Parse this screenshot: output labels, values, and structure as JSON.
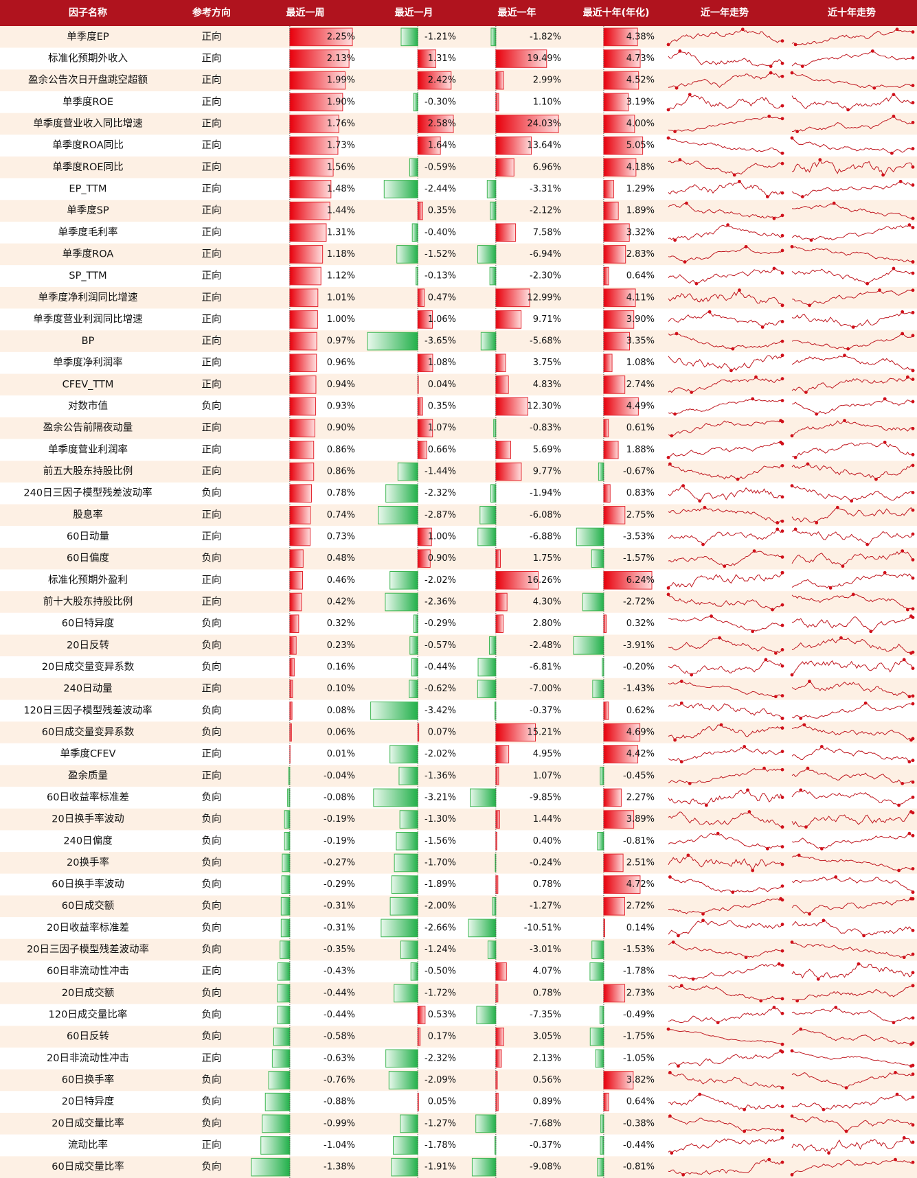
{
  "table": {
    "headers": [
      "因子名称",
      "参考方向",
      "最近一周",
      "最近一月",
      "最近一年",
      "最近十年(年化)",
      "近一年走势",
      "近十年走势"
    ],
    "rows": [
      [
        "单季度EP",
        "正向",
        {
          "value": 2.25,
          "label": "2.25%"
        },
        {
          "value": -1.21,
          "label": "-1.21%"
        },
        {
          "value": -1.82,
          "label": "-1.82%"
        },
        {
          "value": 4.38,
          "label": "4.38%"
        }
      ],
      [
        "标准化预期外收入",
        "正向",
        {
          "value": 2.13,
          "label": "2.13%"
        },
        {
          "value": 1.31,
          "label": "1.31%"
        },
        {
          "value": 19.49,
          "label": "19.49%"
        },
        {
          "value": 4.73,
          "label": "4.73%"
        }
      ],
      [
        "盈余公告次日开盘跳空超额",
        "正向",
        {
          "value": 1.99,
          "label": "1.99%"
        },
        {
          "value": 2.42,
          "label": "2.42%"
        },
        {
          "value": 2.99,
          "label": "2.99%"
        },
        {
          "value": 4.52,
          "label": "4.52%"
        }
      ],
      [
        "单季度ROE",
        "正向",
        {
          "value": 1.9,
          "label": "1.90%"
        },
        {
          "value": -0.3,
          "label": "-0.30%"
        },
        {
          "value": 1.1,
          "label": "1.10%"
        },
        {
          "value": 3.19,
          "label": "3.19%"
        }
      ],
      [
        "单季度营业收入同比增速",
        "正向",
        {
          "value": 1.76,
          "label": "1.76%"
        },
        {
          "value": 2.58,
          "label": "2.58%"
        },
        {
          "value": 24.03,
          "label": "24.03%"
        },
        {
          "value": 4.0,
          "label": "4.00%"
        }
      ],
      [
        "单季度ROA同比",
        "正向",
        {
          "value": 1.73,
          "label": "1.73%"
        },
        {
          "value": 1.64,
          "label": "1.64%"
        },
        {
          "value": 13.64,
          "label": "13.64%"
        },
        {
          "value": 5.05,
          "label": "5.05%"
        }
      ],
      [
        "单季度ROE同比",
        "正向",
        {
          "value": 1.56,
          "label": "1.56%"
        },
        {
          "value": -0.59,
          "label": "-0.59%"
        },
        {
          "value": 6.96,
          "label": "6.96%"
        },
        {
          "value": 4.18,
          "label": "4.18%"
        }
      ],
      [
        "EP_TTM",
        "正向",
        {
          "value": 1.48,
          "label": "1.48%"
        },
        {
          "value": -2.44,
          "label": "-2.44%"
        },
        {
          "value": -3.31,
          "label": "-3.31%"
        },
        {
          "value": 1.29,
          "label": "1.29%"
        }
      ],
      [
        "单季度SP",
        "正向",
        {
          "value": 1.44,
          "label": "1.44%"
        },
        {
          "value": 0.35,
          "label": "0.35%"
        },
        {
          "value": -2.12,
          "label": "-2.12%"
        },
        {
          "value": 1.89,
          "label": "1.89%"
        }
      ],
      [
        "单季度毛利率",
        "正向",
        {
          "value": 1.31,
          "label": "1.31%"
        },
        {
          "value": -0.4,
          "label": "-0.40%"
        },
        {
          "value": 7.58,
          "label": "7.58%"
        },
        {
          "value": 3.32,
          "label": "3.32%"
        }
      ],
      [
        "单季度ROA",
        "正向",
        {
          "value": 1.18,
          "label": "1.18%"
        },
        {
          "value": -1.52,
          "label": "-1.52%"
        },
        {
          "value": -6.94,
          "label": "-6.94%"
        },
        {
          "value": 2.83,
          "label": "2.83%"
        }
      ],
      [
        "SP_TTM",
        "正向",
        {
          "value": 1.12,
          "label": "1.12%"
        },
        {
          "value": -0.13,
          "label": "-0.13%"
        },
        {
          "value": -2.3,
          "label": "-2.30%"
        },
        {
          "value": 0.64,
          "label": "0.64%"
        }
      ],
      [
        "单季度净利润同比增速",
        "正向",
        {
          "value": 1.01,
          "label": "1.01%"
        },
        {
          "value": 0.47,
          "label": "0.47%"
        },
        {
          "value": 12.99,
          "label": "12.99%"
        },
        {
          "value": 4.11,
          "label": "4.11%"
        }
      ],
      [
        "单季度营业利润同比增速",
        "正向",
        {
          "value": 1.0,
          "label": "1.00%"
        },
        {
          "value": 1.06,
          "label": "1.06%"
        },
        {
          "value": 9.71,
          "label": "9.71%"
        },
        {
          "value": 3.9,
          "label": "3.90%"
        }
      ],
      [
        "BP",
        "正向",
        {
          "value": 0.97,
          "label": "0.97%"
        },
        {
          "value": -3.65,
          "label": "-3.65%"
        },
        {
          "value": -5.68,
          "label": "-5.68%"
        },
        {
          "value": 3.35,
          "label": "3.35%"
        }
      ],
      [
        "单季度净利润率",
        "正向",
        {
          "value": 0.96,
          "label": "0.96%"
        },
        {
          "value": 1.08,
          "label": "1.08%"
        },
        {
          "value": 3.75,
          "label": "3.75%"
        },
        {
          "value": 1.08,
          "label": "1.08%"
        }
      ],
      [
        "CFEV_TTM",
        "正向",
        {
          "value": 0.94,
          "label": "0.94%"
        },
        {
          "value": 0.04,
          "label": "0.04%"
        },
        {
          "value": 4.83,
          "label": "4.83%"
        },
        {
          "value": 2.74,
          "label": "2.74%"
        }
      ],
      [
        "对数市值",
        "负向",
        {
          "value": 0.93,
          "label": "0.93%"
        },
        {
          "value": 0.35,
          "label": "0.35%"
        },
        {
          "value": 12.3,
          "label": "12.30%"
        },
        {
          "value": 4.49,
          "label": "4.49%"
        }
      ],
      [
        "盈余公告前隔夜动量",
        "正向",
        {
          "value": 0.9,
          "label": "0.90%"
        },
        {
          "value": 1.07,
          "label": "1.07%"
        },
        {
          "value": -0.83,
          "label": "-0.83%"
        },
        {
          "value": 0.61,
          "label": "0.61%"
        }
      ],
      [
        "单季度营业利润率",
        "正向",
        {
          "value": 0.86,
          "label": "0.86%"
        },
        {
          "value": 0.66,
          "label": "0.66%"
        },
        {
          "value": 5.69,
          "label": "5.69%"
        },
        {
          "value": 1.88,
          "label": "1.88%"
        }
      ],
      [
        "前五大股东持股比例",
        "正向",
        {
          "value": 0.86,
          "label": "0.86%"
        },
        {
          "value": -1.44,
          "label": "-1.44%"
        },
        {
          "value": 9.77,
          "label": "9.77%"
        },
        {
          "value": -0.67,
          "label": "-0.67%"
        }
      ],
      [
        "240日三因子模型残差波动率",
        "负向",
        {
          "value": 0.78,
          "label": "0.78%"
        },
        {
          "value": -2.32,
          "label": "-2.32%"
        },
        {
          "value": -1.94,
          "label": "-1.94%"
        },
        {
          "value": 0.83,
          "label": "0.83%"
        }
      ],
      [
        "股息率",
        "正向",
        {
          "value": 0.74,
          "label": "0.74%"
        },
        {
          "value": -2.87,
          "label": "-2.87%"
        },
        {
          "value": -6.08,
          "label": "-6.08%"
        },
        {
          "value": 2.75,
          "label": "2.75%"
        }
      ],
      [
        "60日动量",
        "正向",
        {
          "value": 0.73,
          "label": "0.73%"
        },
        {
          "value": 1.0,
          "label": "1.00%"
        },
        {
          "value": -6.88,
          "label": "-6.88%"
        },
        {
          "value": -3.53,
          "label": "-3.53%"
        }
      ],
      [
        "60日偏度",
        "负向",
        {
          "value": 0.48,
          "label": "0.48%"
        },
        {
          "value": 0.9,
          "label": "0.90%"
        },
        {
          "value": 1.75,
          "label": "1.75%"
        },
        {
          "value": -1.57,
          "label": "-1.57%"
        }
      ],
      [
        "标准化预期外盈利",
        "正向",
        {
          "value": 0.46,
          "label": "0.46%"
        },
        {
          "value": -2.02,
          "label": "-2.02%"
        },
        {
          "value": 16.26,
          "label": "16.26%"
        },
        {
          "value": 6.24,
          "label": "6.24%"
        }
      ],
      [
        "前十大股东持股比例",
        "正向",
        {
          "value": 0.42,
          "label": "0.42%"
        },
        {
          "value": -2.36,
          "label": "-2.36%"
        },
        {
          "value": 4.3,
          "label": "4.30%"
        },
        {
          "value": -2.72,
          "label": "-2.72%"
        }
      ],
      [
        "60日特异度",
        "负向",
        {
          "value": 0.32,
          "label": "0.32%"
        },
        {
          "value": -0.29,
          "label": "-0.29%"
        },
        {
          "value": 2.8,
          "label": "2.80%"
        },
        {
          "value": 0.32,
          "label": "0.32%"
        }
      ],
      [
        "20日反转",
        "负向",
        {
          "value": 0.23,
          "label": "0.23%"
        },
        {
          "value": -0.57,
          "label": "-0.57%"
        },
        {
          "value": -2.48,
          "label": "-2.48%"
        },
        {
          "value": -3.91,
          "label": "-3.91%"
        }
      ],
      [
        "20日成交量变异系数",
        "负向",
        {
          "value": 0.16,
          "label": "0.16%"
        },
        {
          "value": -0.44,
          "label": "-0.44%"
        },
        {
          "value": -6.81,
          "label": "-6.81%"
        },
        {
          "value": -0.2,
          "label": "-0.20%"
        }
      ],
      [
        "240日动量",
        "正向",
        {
          "value": 0.1,
          "label": "0.10%"
        },
        {
          "value": -0.62,
          "label": "-0.62%"
        },
        {
          "value": -7.0,
          "label": "-7.00%"
        },
        {
          "value": -1.43,
          "label": "-1.43%"
        }
      ],
      [
        "120日三因子模型残差波动率",
        "负向",
        {
          "value": 0.08,
          "label": "0.08%"
        },
        {
          "value": -3.42,
          "label": "-3.42%"
        },
        {
          "value": -0.37,
          "label": "-0.37%"
        },
        {
          "value": 0.62,
          "label": "0.62%"
        }
      ],
      [
        "60日成交量变异系数",
        "负向",
        {
          "value": 0.06,
          "label": "0.06%"
        },
        {
          "value": 0.07,
          "label": "0.07%"
        },
        {
          "value": 15.21,
          "label": "15.21%"
        },
        {
          "value": 4.69,
          "label": "4.69%"
        }
      ],
      [
        "单季度CFEV",
        "正向",
        {
          "value": 0.01,
          "label": "0.01%"
        },
        {
          "value": -2.02,
          "label": "-2.02%"
        },
        {
          "value": 4.95,
          "label": "4.95%"
        },
        {
          "value": 4.42,
          "label": "4.42%"
        }
      ],
      [
        "盈余质量",
        "正向",
        {
          "value": -0.04,
          "label": "-0.04%"
        },
        {
          "value": -1.36,
          "label": "-1.36%"
        },
        {
          "value": 1.07,
          "label": "1.07%"
        },
        {
          "value": -0.45,
          "label": "-0.45%"
        }
      ],
      [
        "60日收益率标准差",
        "负向",
        {
          "value": -0.08,
          "label": "-0.08%"
        },
        {
          "value": -3.21,
          "label": "-3.21%"
        },
        {
          "value": -9.85,
          "label": "-9.85%"
        },
        {
          "value": 2.27,
          "label": "2.27%"
        }
      ],
      [
        "20日换手率波动",
        "负向",
        {
          "value": -0.19,
          "label": "-0.19%"
        },
        {
          "value": -1.3,
          "label": "-1.30%"
        },
        {
          "value": 1.44,
          "label": "1.44%"
        },
        {
          "value": 3.89,
          "label": "3.89%"
        }
      ],
      [
        "240日偏度",
        "负向",
        {
          "value": -0.19,
          "label": "-0.19%"
        },
        {
          "value": -1.56,
          "label": "-1.56%"
        },
        {
          "value": 0.4,
          "label": "0.40%"
        },
        {
          "value": -0.81,
          "label": "-0.81%"
        }
      ],
      [
        "20换手率",
        "负向",
        {
          "value": -0.27,
          "label": "-0.27%"
        },
        {
          "value": -1.7,
          "label": "-1.70%"
        },
        {
          "value": -0.24,
          "label": "-0.24%"
        },
        {
          "value": 2.51,
          "label": "2.51%"
        }
      ],
      [
        "60日换手率波动",
        "负向",
        {
          "value": -0.29,
          "label": "-0.29%"
        },
        {
          "value": -1.89,
          "label": "-1.89%"
        },
        {
          "value": 0.78,
          "label": "0.78%"
        },
        {
          "value": 4.72,
          "label": "4.72%"
        }
      ],
      [
        "60日成交额",
        "负向",
        {
          "value": -0.31,
          "label": "-0.31%"
        },
        {
          "value": -2.0,
          "label": "-2.00%"
        },
        {
          "value": -1.27,
          "label": "-1.27%"
        },
        {
          "value": 2.72,
          "label": "2.72%"
        }
      ],
      [
        "20日收益率标准差",
        "负向",
        {
          "value": -0.31,
          "label": "-0.31%"
        },
        {
          "value": -2.66,
          "label": "-2.66%"
        },
        {
          "value": -10.51,
          "label": "-10.51%"
        },
        {
          "value": 0.14,
          "label": "0.14%"
        }
      ],
      [
        "20日三因子模型残差波动率",
        "负向",
        {
          "value": -0.35,
          "label": "-0.35%"
        },
        {
          "value": -1.24,
          "label": "-1.24%"
        },
        {
          "value": -3.01,
          "label": "-3.01%"
        },
        {
          "value": -1.53,
          "label": "-1.53%"
        }
      ],
      [
        "60日非流动性冲击",
        "正向",
        {
          "value": -0.43,
          "label": "-0.43%"
        },
        {
          "value": -0.5,
          "label": "-0.50%"
        },
        {
          "value": 4.07,
          "label": "4.07%"
        },
        {
          "value": -1.78,
          "label": "-1.78%"
        }
      ],
      [
        "20日成交额",
        "负向",
        {
          "value": -0.44,
          "label": "-0.44%"
        },
        {
          "value": -1.72,
          "label": "-1.72%"
        },
        {
          "value": 0.78,
          "label": "0.78%"
        },
        {
          "value": 2.73,
          "label": "2.73%"
        }
      ],
      [
        "120日成交量比率",
        "负向",
        {
          "value": -0.44,
          "label": "-0.44%"
        },
        {
          "value": 0.53,
          "label": "0.53%"
        },
        {
          "value": -7.35,
          "label": "-7.35%"
        },
        {
          "value": -0.49,
          "label": "-0.49%"
        }
      ],
      [
        "60日反转",
        "负向",
        {
          "value": -0.58,
          "label": "-0.58%"
        },
        {
          "value": 0.17,
          "label": "0.17%"
        },
        {
          "value": 3.05,
          "label": "3.05%"
        },
        {
          "value": -1.75,
          "label": "-1.75%"
        }
      ],
      [
        "20日非流动性冲击",
        "正向",
        {
          "value": -0.63,
          "label": "-0.63%"
        },
        {
          "value": -2.32,
          "label": "-2.32%"
        },
        {
          "value": 2.13,
          "label": "2.13%"
        },
        {
          "value": -1.05,
          "label": "-1.05%"
        }
      ],
      [
        "60日换手率",
        "负向",
        {
          "value": -0.76,
          "label": "-0.76%"
        },
        {
          "value": -2.09,
          "label": "-2.09%"
        },
        {
          "value": 0.56,
          "label": "0.56%"
        },
        {
          "value": 3.82,
          "label": "3.82%"
        }
      ],
      [
        "20日特异度",
        "负向",
        {
          "value": -0.88,
          "label": "-0.88%"
        },
        {
          "value": 0.05,
          "label": "0.05%"
        },
        {
          "value": 0.89,
          "label": "0.89%"
        },
        {
          "value": 0.64,
          "label": "0.64%"
        }
      ],
      [
        "20日成交量比率",
        "负向",
        {
          "value": -0.99,
          "label": "-0.99%"
        },
        {
          "value": -1.27,
          "label": "-1.27%"
        },
        {
          "value": -7.68,
          "label": "-7.68%"
        },
        {
          "value": -0.38,
          "label": "-0.38%"
        }
      ],
      [
        "流动比率",
        "正向",
        {
          "value": -1.04,
          "label": "-1.04%"
        },
        {
          "value": -1.78,
          "label": "-1.78%"
        },
        {
          "value": -0.37,
          "label": "-0.37%"
        },
        {
          "value": -0.44,
          "label": "-0.44%"
        }
      ],
      [
        "60日成交量比率",
        "负向",
        {
          "value": -1.38,
          "label": "-1.38%"
        },
        {
          "value": -1.91,
          "label": "-1.91%"
        },
        {
          "value": -9.08,
          "label": "-9.08%"
        },
        {
          "value": -0.81,
          "label": "-0.81%"
        }
      ]
    ]
  }
}
